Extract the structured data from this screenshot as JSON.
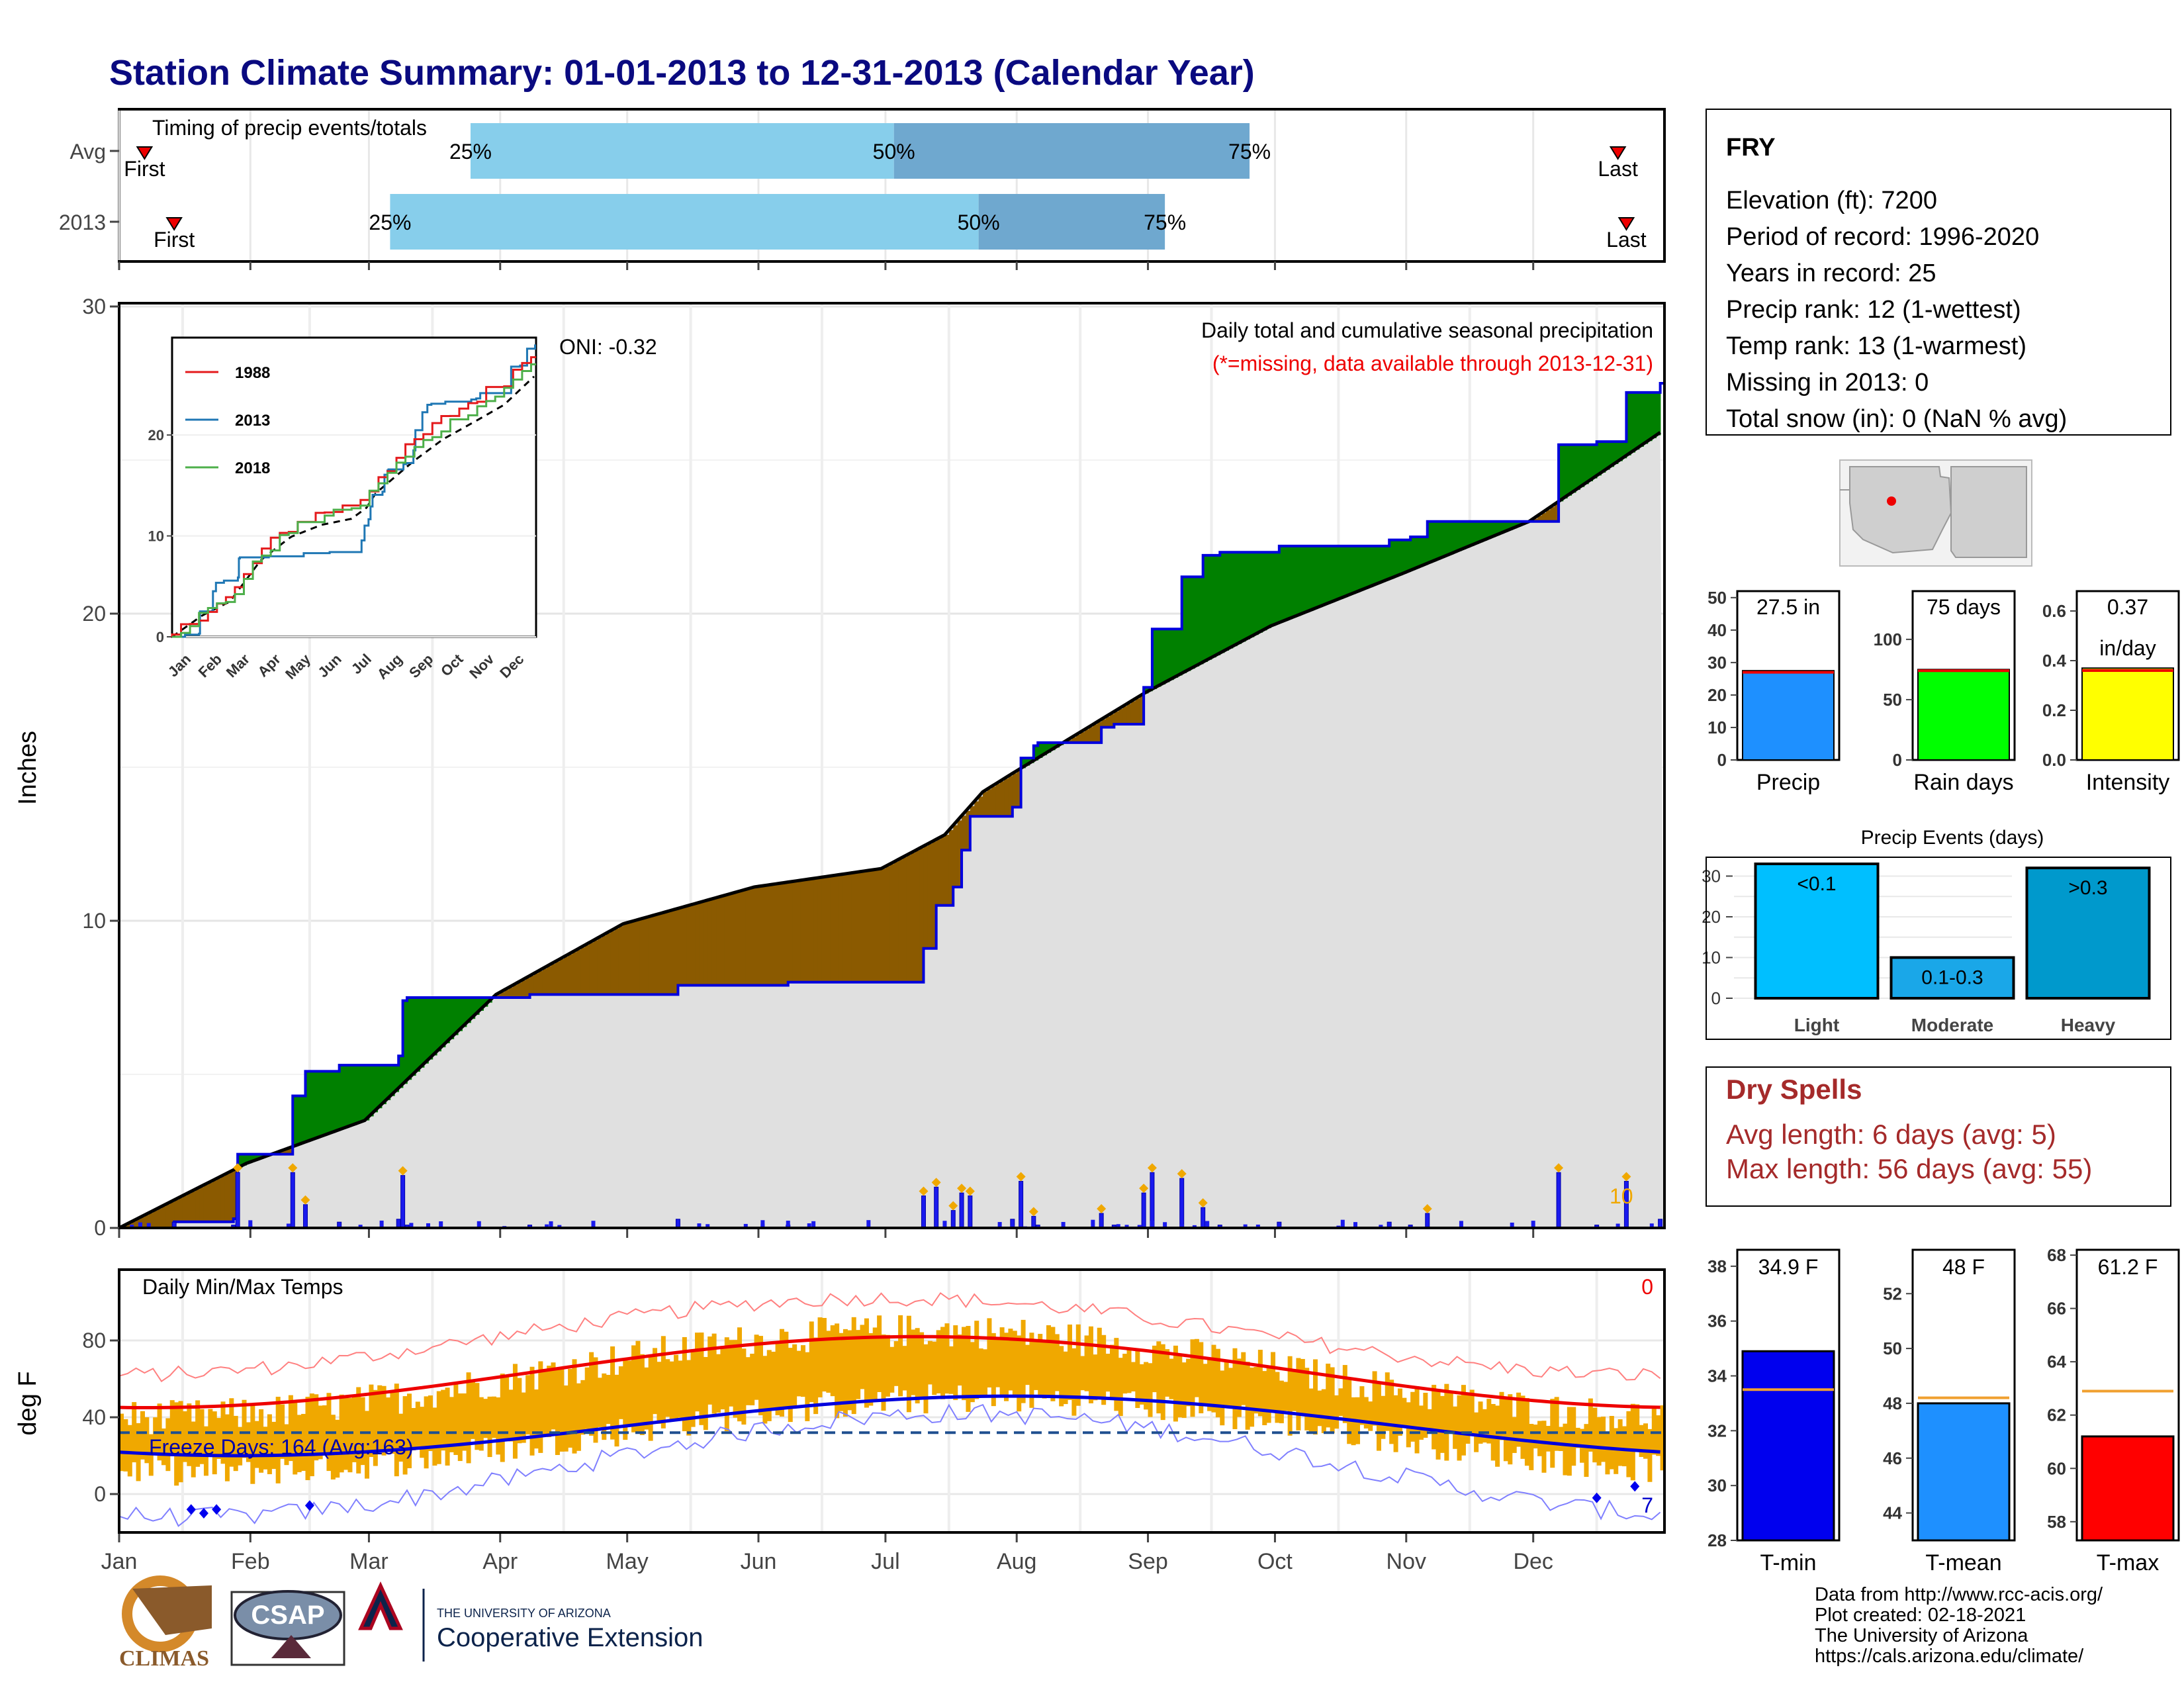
{
  "title": "Station Climate Summary: 01-01-2013 to 12-31-2013 (Calendar Year)",
  "colors": {
    "title": "#0a0a80",
    "ltblue": "#87ceeb",
    "midblue": "#6fa8cf",
    "green": "#008000",
    "brown": "#8b5a00",
    "grey": "#e0e0e0",
    "navy": "#0000cc",
    "red": "#ee0000",
    "orange": "#f0a800",
    "dry": "#a52a2a"
  },
  "months": [
    "Jan",
    "Feb",
    "Mar",
    "Apr",
    "May",
    "Jun",
    "Jul",
    "Aug",
    "Sep",
    "Oct",
    "Nov",
    "Dec"
  ],
  "timing": {
    "title": "Timing of precip events/totals",
    "rows": [
      {
        "label": "Avg",
        "first": "First",
        "last": "Last",
        "first_day": 7,
        "last_day": 355,
        "p25": 84,
        "p50": 184,
        "p75": 268,
        "l25": "25%",
        "l50": "50%",
        "l75": "75%"
      },
      {
        "label": "2013",
        "first": "First",
        "last": "Last",
        "first_day": 14,
        "last_day": 357,
        "p25": 65,
        "p50": 204,
        "p75": 248,
        "l25": "25%",
        "l50": "50%",
        "l75": "75%"
      }
    ]
  },
  "station": {
    "name": "FRY",
    "lines": [
      "Elevation (ft): 7200",
      "Period of record: 1996-2020",
      "Years in record: 25",
      "Precip rank: 12 (1-wettest)",
      "Temp rank: 13 (1-warmest)",
      "Missing in 2013: 0",
      "Total snow (in): 0 (NaN % avg)"
    ]
  },
  "precip_panel": {
    "ylabel": "Inches",
    "y_ticks": [
      "0",
      "10",
      "20",
      "30"
    ],
    "subtitle": "Daily total and cumulative seasonal precipitation",
    "missing_note": "(*=missing, data available through 2013-12-31)",
    "oni": "ONI: -0.32",
    "corner_value": "10"
  },
  "inset": {
    "legend": [
      "1988",
      "2013",
      "2018"
    ],
    "y_ticks": [
      "0",
      "10",
      "20"
    ],
    "months": [
      "Jan",
      "Feb",
      "Mar",
      "Apr",
      "May",
      "Jun",
      "Jul",
      "Aug",
      "Sep",
      "Oct",
      "Nov",
      "Dec"
    ]
  },
  "temp_panel": {
    "ylabel": "deg F",
    "title": "Daily Min/Max Temps",
    "y_ticks": [
      "0",
      "40",
      "80"
    ],
    "freeze": "Freeze Days: 164 (Avg:163)",
    "top_right": "0",
    "bottom_right": "7"
  },
  "summary_bars": [
    {
      "label": "Precip",
      "value_text": "27.5 in",
      "ticks": [
        "0",
        "10",
        "20",
        "30",
        "40",
        "50"
      ]
    },
    {
      "label": "Rain days",
      "value_text": "75 days",
      "ticks": [
        "0",
        "50",
        "100"
      ]
    },
    {
      "label": "Intensity",
      "value_text": "0.37",
      "value_text2": "in/day",
      "ticks": [
        "0.0",
        "0.2",
        "0.4",
        "0.6"
      ]
    }
  ],
  "events": {
    "title": "Precip Events (days)",
    "ticks": [
      "0",
      "10",
      "20",
      "30"
    ],
    "bars": [
      {
        "label": "Light",
        "inner": "<0.1"
      },
      {
        "label": "Moderate",
        "inner": "0.1-0.3"
      },
      {
        "label": "Heavy",
        "inner": ">0.3"
      }
    ]
  },
  "dry_spells": {
    "title": "Dry Spells",
    "avg": "Avg length: 6 days (avg: 5)",
    "max": "Max length: 56 days (avg: 55)"
  },
  "temp_bars": [
    {
      "label": "T-min",
      "value_text": "34.9 F",
      "ticks": [
        "28",
        "30",
        "32",
        "34",
        "36",
        "38"
      ]
    },
    {
      "label": "T-mean",
      "value_text": "48 F",
      "ticks": [
        "44",
        "46",
        "48",
        "50",
        "52"
      ]
    },
    {
      "label": "T-max",
      "value_text": "61.2 F",
      "ticks": [
        "58",
        "60",
        "62",
        "64",
        "66",
        "68"
      ]
    }
  ],
  "footer": {
    "lines": [
      "Data from http://www.rcc-acis.org/",
      "Plot created: 02-18-2021",
      "The University of Arizona",
      "https://cals.arizona.edu/climate/"
    ],
    "climas": "CLIMAS",
    "csap": "CSAP",
    "ua_small": "THE UNIVERSITY OF ARIZONA",
    "ua_big": "Cooperative Extension"
  },
  "chart_data": [
    {
      "type": "line",
      "title": "Daily total and cumulative seasonal precipitation",
      "ylabel": "Inches",
      "ylim": [
        0,
        30
      ],
      "series": [
        {
          "name": "2013",
          "x": [
            1,
            14,
            28,
            29,
            42,
            45,
            53,
            58,
            67,
            68,
            69,
            98,
            133,
            153,
            159,
            180,
            191,
            194,
            198,
            200,
            202,
            212,
            214,
            217,
            218,
            221,
            226,
            233,
            236,
            243,
            245,
            247,
            252,
            257,
            261,
            275,
            301,
            306,
            310,
            341,
            350,
            357,
            365
          ],
          "y": [
            0,
            0.2,
            0.3,
            2.4,
            4.3,
            5.1,
            5.3,
            5.3,
            5.6,
            7.4,
            7.5,
            7.6,
            7.9,
            7.9,
            8.0,
            8.0,
            9.1,
            10.5,
            11.1,
            12.3,
            13.4,
            13.7,
            15.3,
            15.7,
            15.8,
            15.8,
            15.8,
            16.3,
            16.4,
            17.6,
            19.5,
            19.5,
            21.2,
            21.9,
            22.0,
            22.2,
            22.4,
            22.5,
            23.0,
            25.5,
            25.6,
            27.2,
            27.5
          ]
        }
      ]
    },
    {
      "type": "bar",
      "categories": [
        "Precip",
        "Rain days",
        "Intensity"
      ],
      "values": [
        27.5,
        75,
        0.37
      ],
      "series": [
        {
          "values": [
            27.5,
            75,
            0.37
          ]
        }
      ],
      "averages": [
        27,
        74,
        0.36
      ]
    },
    {
      "type": "bar",
      "title": "Precip Events (days)",
      "categories": [
        "Light",
        "Moderate",
        "Heavy"
      ],
      "values": [
        33,
        10,
        32
      ],
      "ylim": [
        0,
        33
      ]
    },
    {
      "type": "bar",
      "categories": [
        "T-min",
        "T-mean",
        "T-max"
      ],
      "values": [
        34.9,
        48,
        61.2
      ],
      "averages": [
        33.5,
        48.2,
        62.9
      ]
    }
  ]
}
